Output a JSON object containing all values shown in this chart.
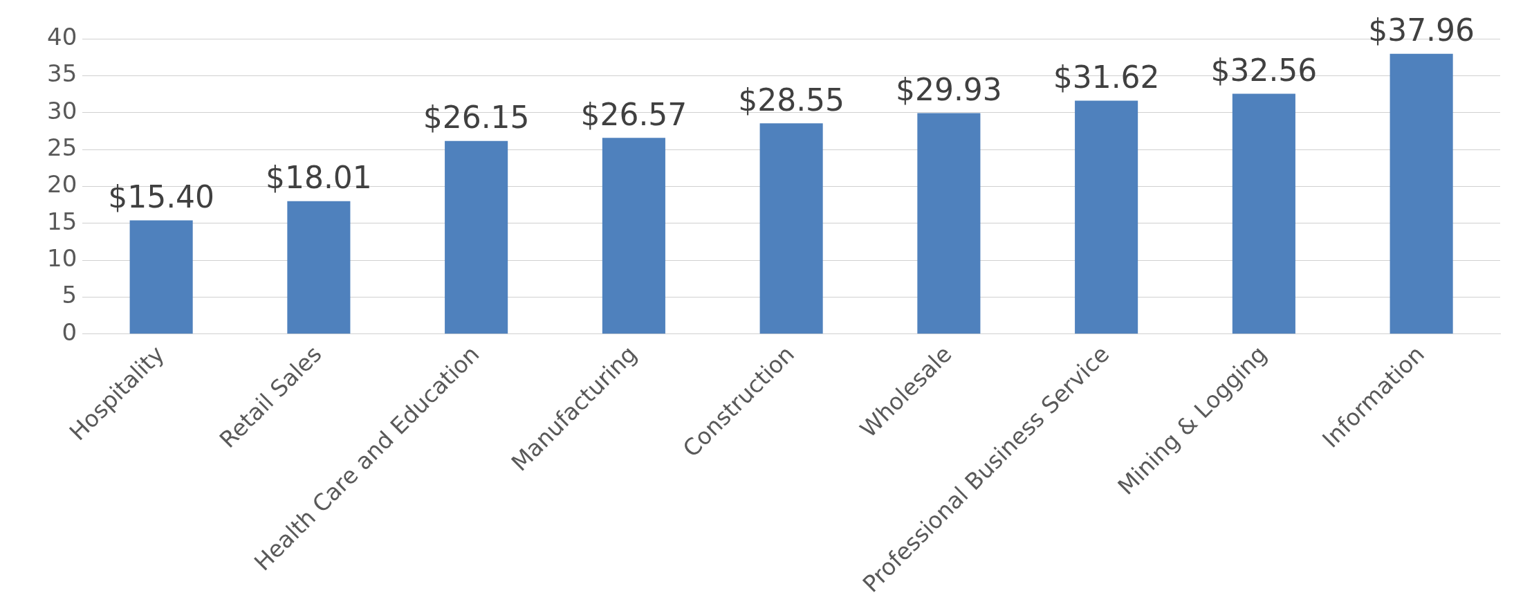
{
  "chart_data": {
    "type": "bar",
    "categories": [
      "Hospitality",
      "Retail Sales",
      "Health Care and Education",
      "Manufacturing",
      "Construction",
      "Wholesale",
      "Professional Business Service",
      "Mining & Logging",
      "Information"
    ],
    "values": [
      15.4,
      18.01,
      26.15,
      26.57,
      28.55,
      29.93,
      31.62,
      32.56,
      37.96
    ],
    "value_labels": [
      "$15.40",
      "$18.01",
      "$26.15",
      "$26.57",
      "$28.55",
      "$29.93",
      "$31.62",
      "$32.56",
      "$37.96"
    ],
    "color": "#4f81bd",
    "ylim": [
      0,
      40
    ],
    "yticks": [
      0,
      5,
      10,
      15,
      20,
      25,
      30,
      35,
      40
    ],
    "grid": "y",
    "legend": false
  }
}
